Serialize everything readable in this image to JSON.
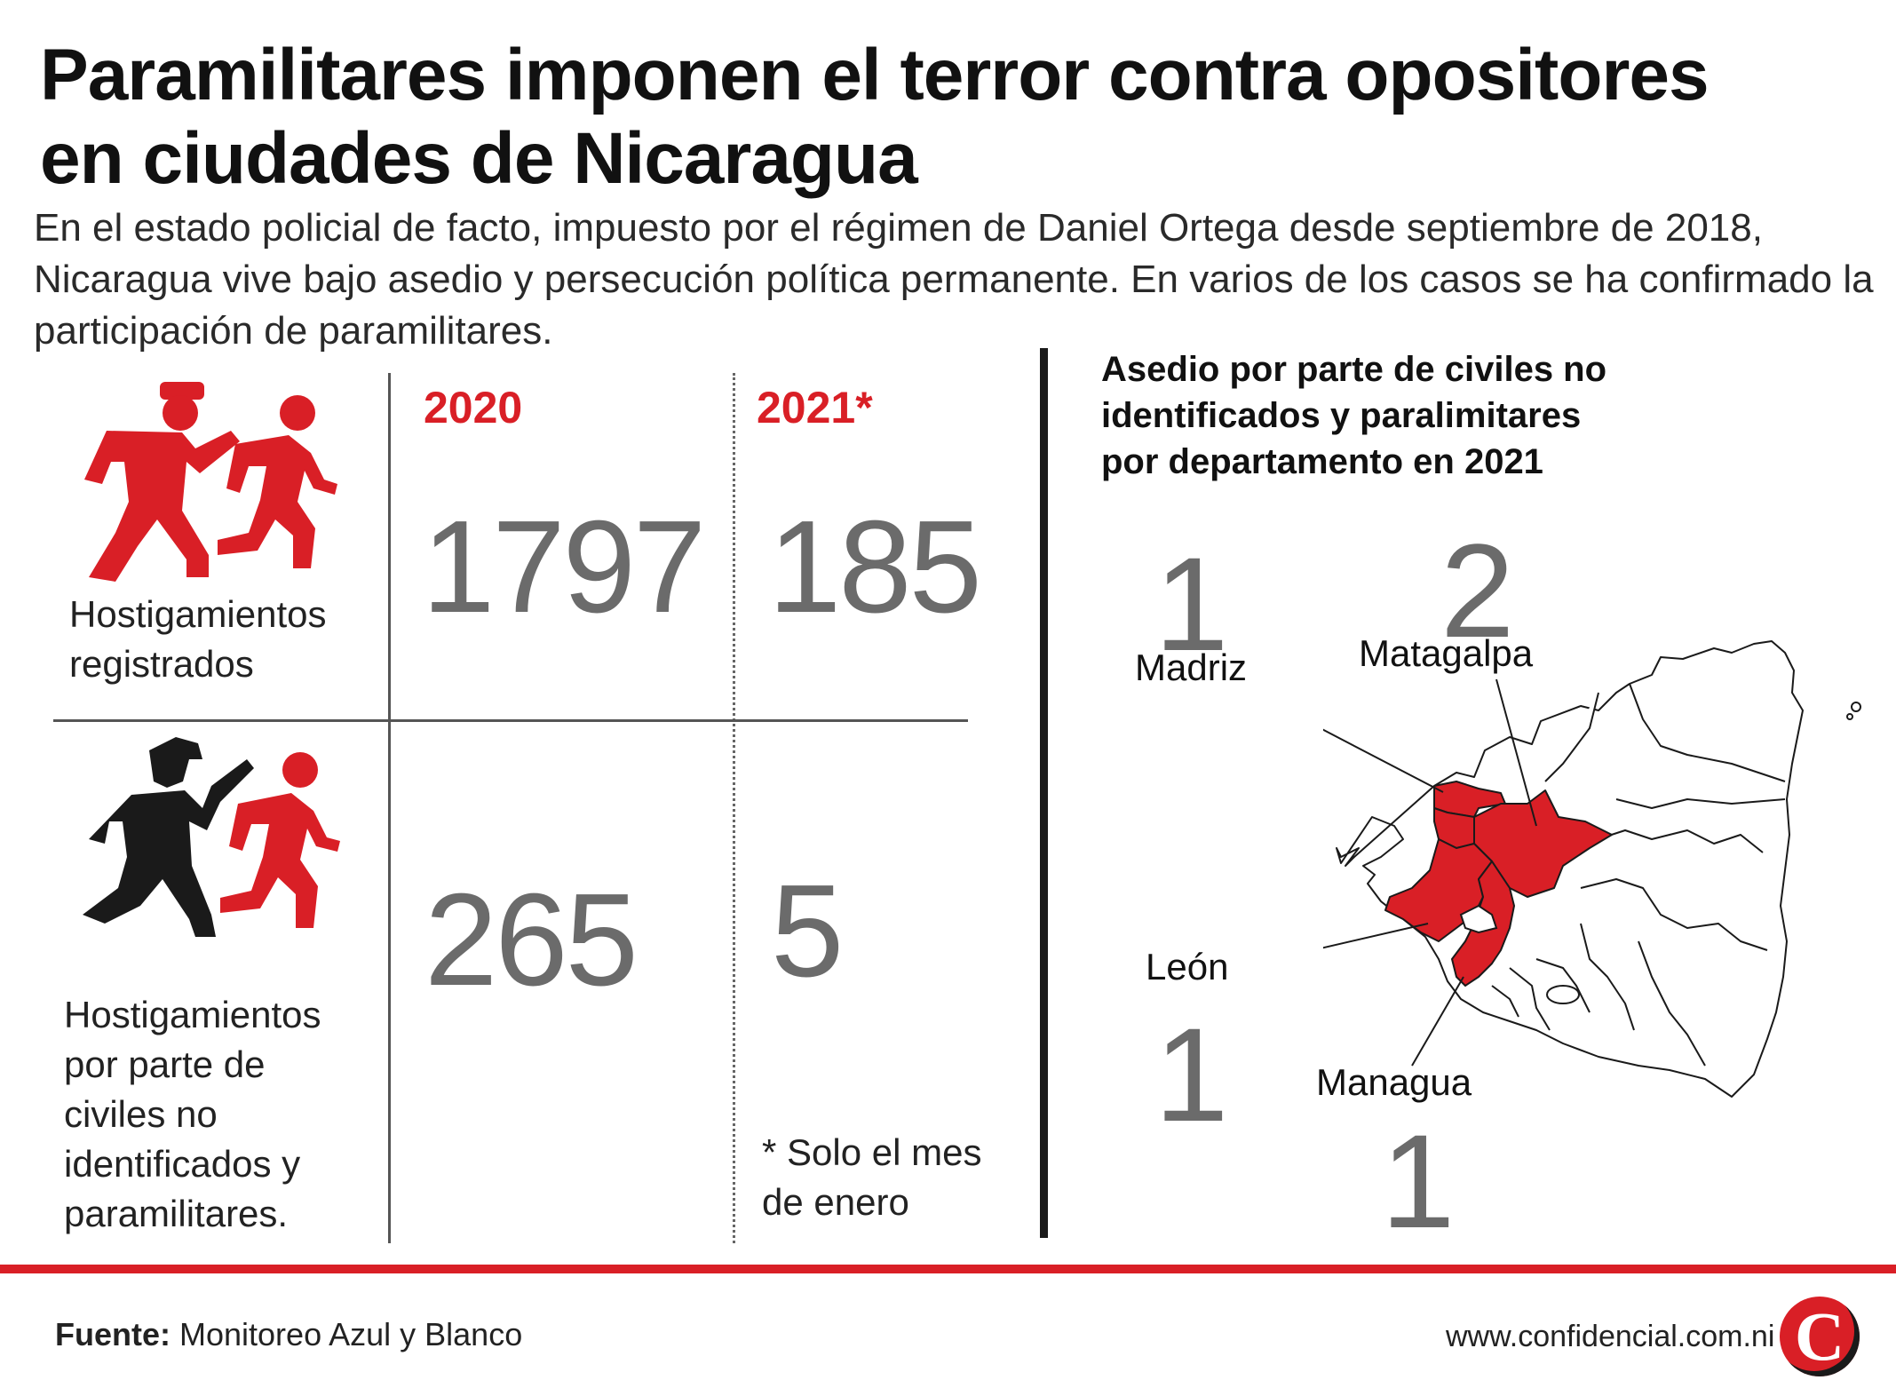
{
  "title_line1": "Paramilitares imponen el terror contra opositores",
  "title_line2": "en ciudades de Nicaragua",
  "subtitle_line1": "En el estado policial de facto, impuesto por el régimen de Daniel Ortega desde septiembre de 2018,",
  "subtitle_line2": "Nicaragua vive bajo asedio y persecución política permanente. En varios de los casos se ha confirmado la",
  "subtitle_line3": "participación de paramilitares.",
  "table": {
    "year_2020": "2020",
    "year_2021": "2021*",
    "row1": {
      "label_line1": "Hostigamientos",
      "label_line2": "registrados",
      "value_2020": "1797",
      "value_2021": "185",
      "icon": "police-chasing-person-icon"
    },
    "row2": {
      "label_line1": "Hostigamientos",
      "label_line2": "por parte de",
      "label_line3": "civiles no",
      "label_line4": "identificados y",
      "label_line5": "paramilitares.",
      "value_2020": "265",
      "value_2021": "5",
      "icon": "paramilitary-chasing-person-icon"
    },
    "footnote_line1": "* Solo el mes",
    "footnote_line2": "de  enero"
  },
  "map": {
    "title_line1": "Asedio por parte de civiles no",
    "title_line2": "identificados y paralimitares",
    "title_line3": "por departamento en 2021",
    "departments": [
      {
        "name": "Madriz",
        "value": "1"
      },
      {
        "name": "Matagalpa",
        "value": "2"
      },
      {
        "name": "León",
        "value": "1"
      },
      {
        "name": "Managua",
        "value": "1"
      }
    ]
  },
  "footer": {
    "source_label": "Fuente:",
    "source_text": " Monitoreo Azul y Blanco",
    "website": "www.confidencial.com.ni",
    "logo_letter": "C"
  },
  "colors": {
    "accent": "#d91f26",
    "number_gray": "#6b6b6b",
    "text": "#1a1a1a"
  }
}
